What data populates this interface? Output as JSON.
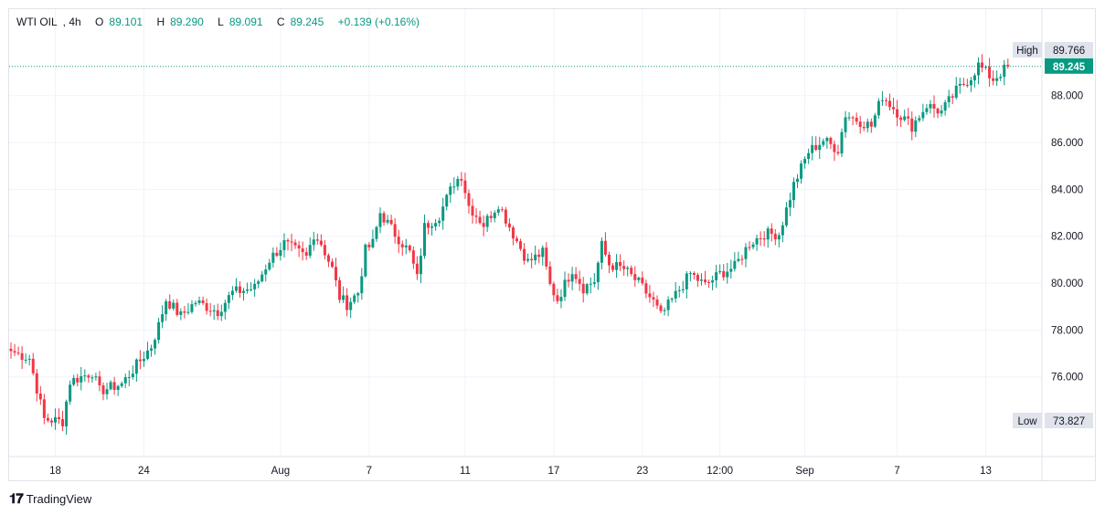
{
  "header": {
    "symbol": "WTI OIL",
    "interval": "4h",
    "open_label": "O",
    "open": "89.101",
    "high_label": "H",
    "high": "89.290",
    "low_label": "L",
    "low": "89.091",
    "close_label": "C",
    "close": "89.245",
    "change": "+0.139 (+0.16%)"
  },
  "branding": {
    "name": "TradingView"
  },
  "colors": {
    "up": "#089981",
    "down": "#f23645",
    "grid": "#f0f3fa",
    "price_line": "#089981"
  },
  "chart_data": {
    "type": "candlestick",
    "ylim": [
      72.6,
      90.6
    ],
    "y_ticks": [
      76,
      78,
      80,
      82,
      84,
      86,
      88
    ],
    "y_tick_labels": [
      "76.000",
      "78.000",
      "80.000",
      "82.000",
      "84.000",
      "86.000",
      "88.000"
    ],
    "x_tick_labels": [
      "18",
      "24",
      "Aug",
      "7",
      "11",
      "17",
      "23",
      "12:00",
      "Sep",
      "7",
      "13"
    ],
    "x_tick_index": [
      12,
      36,
      73,
      97,
      123,
      147,
      171,
      192,
      215,
      240,
      264
    ],
    "high_marker": {
      "label": "High",
      "value": "89.766"
    },
    "low_marker": {
      "label": "Low",
      "value": "73.827"
    },
    "last_price": {
      "value": "89.245",
      "numeric": 89.245
    },
    "anchors": [
      [
        0,
        77.1
      ],
      [
        5,
        76.8
      ],
      [
        7,
        75.5
      ],
      [
        9,
        74.2
      ],
      [
        14,
        74.1
      ],
      [
        16,
        75.8
      ],
      [
        22,
        76.2
      ],
      [
        24,
        75.4
      ],
      [
        30,
        75.7
      ],
      [
        34,
        76.5
      ],
      [
        38,
        77.3
      ],
      [
        40,
        78.2
      ],
      [
        42,
        79.3
      ],
      [
        46,
        78.6
      ],
      [
        50,
        79.2
      ],
      [
        56,
        78.8
      ],
      [
        60,
        79.6
      ],
      [
        66,
        79.8
      ],
      [
        70,
        81.0
      ],
      [
        74,
        81.7
      ],
      [
        80,
        81.1
      ],
      [
        82,
        82.1
      ],
      [
        84,
        81.7
      ],
      [
        87,
        80.6
      ],
      [
        89,
        79.4
      ],
      [
        91,
        79.1
      ],
      [
        94,
        79.6
      ],
      [
        96,
        81.4
      ],
      [
        98,
        81.7
      ],
      [
        100,
        83.0
      ],
      [
        104,
        82.1
      ],
      [
        108,
        81.3
      ],
      [
        110,
        80.2
      ],
      [
        112,
        82.4
      ],
      [
        116,
        82.9
      ],
      [
        120,
        84.3
      ],
      [
        122,
        84.6
      ],
      [
        124,
        83.3
      ],
      [
        128,
        82.5
      ],
      [
        132,
        83.4
      ],
      [
        136,
        82.1
      ],
      [
        140,
        80.9
      ],
      [
        144,
        81.3
      ],
      [
        146,
        79.9
      ],
      [
        148,
        79.3
      ],
      [
        152,
        80.6
      ],
      [
        155,
        79.8
      ],
      [
        158,
        80.1
      ],
      [
        160,
        81.6
      ],
      [
        162,
        80.8
      ],
      [
        166,
        80.6
      ],
      [
        170,
        80.0
      ],
      [
        174,
        79.2
      ],
      [
        176,
        78.6
      ],
      [
        180,
        79.5
      ],
      [
        184,
        80.4
      ],
      [
        188,
        79.9
      ],
      [
        192,
        80.4
      ],
      [
        196,
        80.7
      ],
      [
        200,
        81.7
      ],
      [
        204,
        82.1
      ],
      [
        208,
        82.1
      ],
      [
        212,
        84.2
      ],
      [
        216,
        85.6
      ],
      [
        220,
        86.1
      ],
      [
        224,
        85.7
      ],
      [
        226,
        87.2
      ],
      [
        230,
        86.9
      ],
      [
        233,
        86.7
      ],
      [
        236,
        88.0
      ],
      [
        240,
        87.3
      ],
      [
        244,
        86.7
      ],
      [
        248,
        87.6
      ],
      [
        252,
        87.3
      ],
      [
        256,
        88.2
      ],
      [
        260,
        88.8
      ],
      [
        262,
        89.3
      ],
      [
        266,
        88.7
      ],
      [
        270,
        89.245
      ]
    ]
  }
}
